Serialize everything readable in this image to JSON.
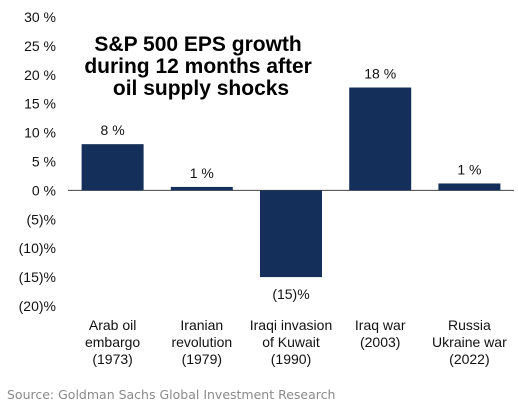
{
  "chart_data": {
    "type": "bar",
    "title_lines": [
      "S&P 500 EPS growth",
      "during 12 months after",
      "oil supply shocks"
    ],
    "categories": [
      [
        "Arab oil",
        "embargo",
        "(1973)"
      ],
      [
        "Iranian",
        "revolution",
        "(1979)"
      ],
      [
        "Iraqi invasion",
        "of Kuwait",
        "(1990)"
      ],
      [
        "Iraq war",
        "(2003)"
      ],
      [
        "Russia",
        "Ukraine war",
        "(2022)"
      ]
    ],
    "values": [
      8,
      0.6,
      -15,
      17.8,
      1.2
    ],
    "data_labels": [
      "8 %",
      "1 %",
      "(15)%",
      "18 %",
      "1 %"
    ],
    "ylim": [
      -20,
      30
    ],
    "y_ticks": [
      30,
      25,
      20,
      15,
      10,
      5,
      0,
      -5,
      -10,
      -15,
      -20
    ],
    "y_tick_labels": [
      "30 %",
      "25 %",
      "20 %",
      "15 %",
      "10 %",
      "5 %",
      "0 %",
      "(5)%",
      "(10)%",
      "(15)%",
      "(20)%"
    ],
    "grid": false,
    "bar_color": "#14305a",
    "xlabel": "",
    "ylabel": ""
  },
  "source": "Source: Goldman Sachs Global Investment Research"
}
